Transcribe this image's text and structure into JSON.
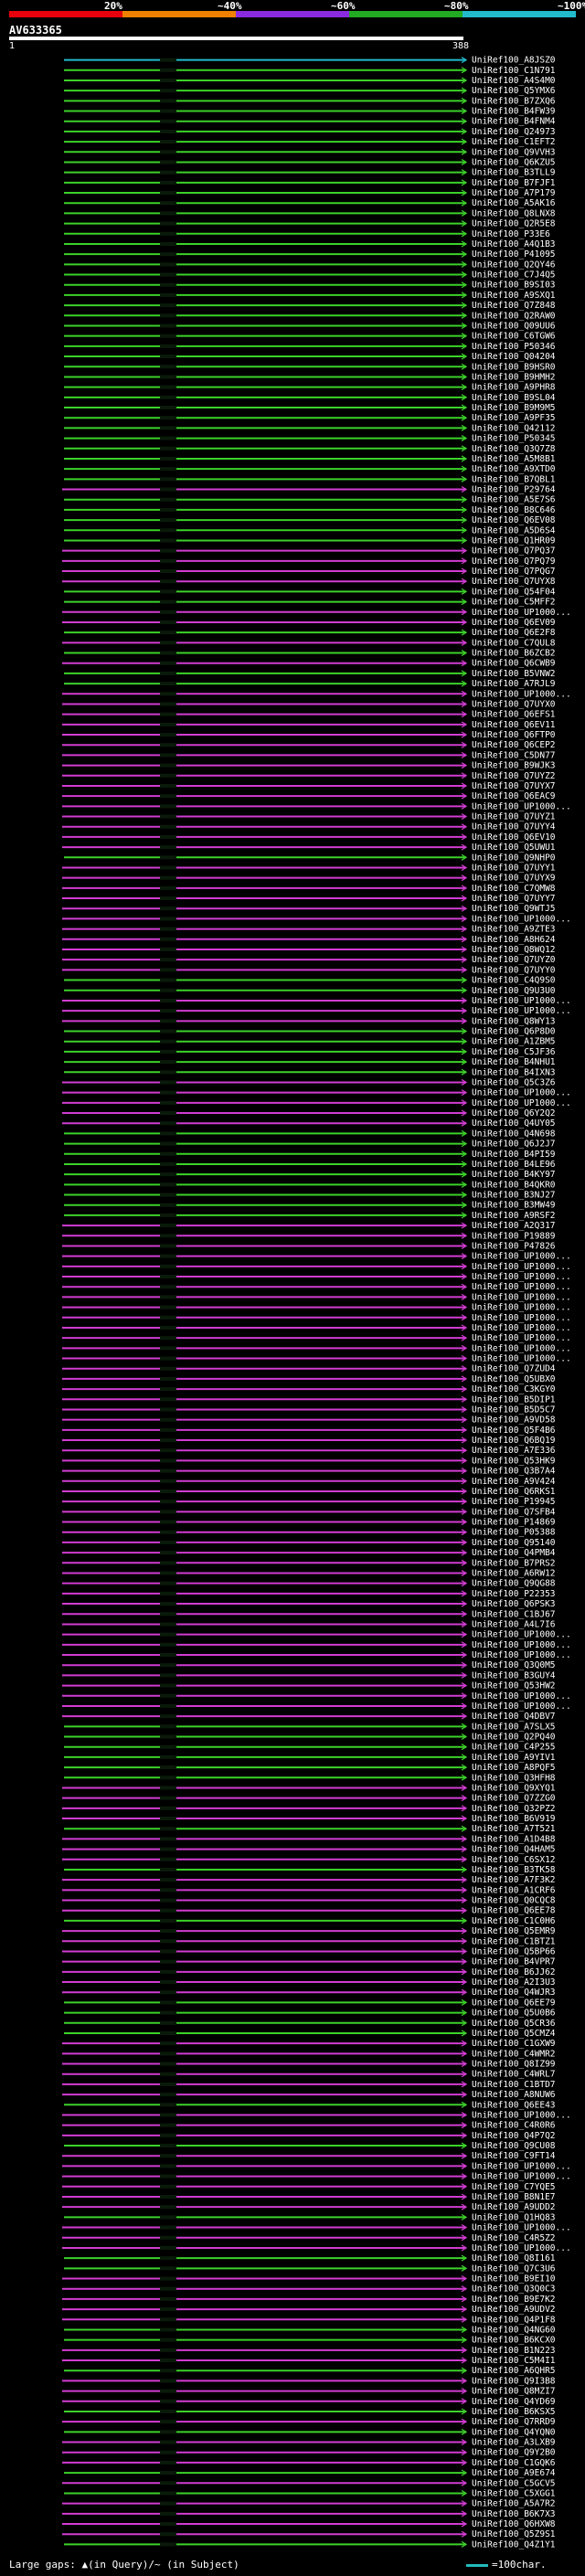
{
  "legend": {
    "segments": [
      {
        "label": "20%",
        "color": "#e8000d"
      },
      {
        "label": "~40%",
        "color": "#f08000"
      },
      {
        "label": "~60%",
        "color": "#8a2be2"
      },
      {
        "label": "~80%",
        "color": "#22aa22"
      },
      {
        "label": "~100%",
        "color": "#22bbcc"
      }
    ]
  },
  "query": {
    "name": "AV633365",
    "start_label": "1",
    "end_label": "388"
  },
  "colors": {
    "green": "#3cd22a",
    "magenta": "#d23cd2",
    "cyan": "#22bbcc",
    "black_bar": "#0a1a0a"
  },
  "hits": [
    {
      "label": "UniRef100_A8JSZ0",
      "color": "cyan"
    },
    {
      "label": "UniRef100_C1N791",
      "color": "green"
    },
    {
      "label": "UniRef100_A4S4M0",
      "color": "green"
    },
    {
      "label": "UniRef100_Q5YMX6",
      "color": "green"
    },
    {
      "label": "UniRef100_B7ZXQ6",
      "color": "green"
    },
    {
      "label": "UniRef100_B4FW39",
      "color": "green"
    },
    {
      "label": "UniRef100_B4FNM4",
      "color": "green"
    },
    {
      "label": "UniRef100_Q24973",
      "color": "green"
    },
    {
      "label": "UniRef100_C1EFT2",
      "color": "green"
    },
    {
      "label": "UniRef100_Q9VVH3",
      "color": "green"
    },
    {
      "label": "UniRef100_Q6KZU5",
      "color": "green"
    },
    {
      "label": "UniRef100_B3TLL9",
      "color": "green"
    },
    {
      "label": "UniRef100_B7FJF1",
      "color": "green"
    },
    {
      "label": "UniRef100_A7P179",
      "color": "green"
    },
    {
      "label": "UniRef100_A5AK16",
      "color": "green"
    },
    {
      "label": "UniRef100_Q8LNX8",
      "color": "green"
    },
    {
      "label": "UniRef100_Q2R5E8",
      "color": "green"
    },
    {
      "label": "UniRef100_P33E6",
      "color": "green"
    },
    {
      "label": "UniRef100_A4Q1B3",
      "color": "green"
    },
    {
      "label": "UniRef100_P41095",
      "color": "green"
    },
    {
      "label": "UniRef100_Q2QY46",
      "color": "green"
    },
    {
      "label": "UniRef100_C7J4Q5",
      "color": "green"
    },
    {
      "label": "UniRef100_B9SI03",
      "color": "green"
    },
    {
      "label": "UniRef100_A9SXQ1",
      "color": "green"
    },
    {
      "label": "UniRef100_Q7Z848",
      "color": "green"
    },
    {
      "label": "UniRef100_Q2RAW0",
      "color": "green"
    },
    {
      "label": "UniRef100_Q09UU6",
      "color": "green"
    },
    {
      "label": "UniRef100_C6TGW6",
      "color": "green"
    },
    {
      "label": "UniRef100_P50346",
      "color": "green"
    },
    {
      "label": "UniRef100_Q04204",
      "color": "green"
    },
    {
      "label": "UniRef100_B9HSR0",
      "color": "green"
    },
    {
      "label": "UniRef100_B9HMH2",
      "color": "green"
    },
    {
      "label": "UniRef100_A9PHR8",
      "color": "green"
    },
    {
      "label": "UniRef100_B9SL04",
      "color": "green"
    },
    {
      "label": "UniRef100_B9M9M5",
      "color": "green"
    },
    {
      "label": "UniRef100_A9PF35",
      "color": "green"
    },
    {
      "label": "UniRef100_Q42112",
      "color": "green"
    },
    {
      "label": "UniRef100_P50345",
      "color": "green"
    },
    {
      "label": "UniRef100_Q3Q7Z8",
      "color": "green"
    },
    {
      "label": "UniRef100_A5M8B1",
      "color": "green"
    },
    {
      "label": "UniRef100_A9XTD0",
      "color": "green"
    },
    {
      "label": "UniRef100_B7QBL1",
      "color": "green"
    },
    {
      "label": "UniRef100_P29764",
      "color": "magenta"
    },
    {
      "label": "UniRef100_A5E7S6",
      "color": "green"
    },
    {
      "label": "UniRef100_B8C646",
      "color": "green"
    },
    {
      "label": "UniRef100_Q6EV08",
      "color": "green"
    },
    {
      "label": "UniRef100_A5D6S4",
      "color": "green"
    },
    {
      "label": "UniRef100_Q1HR09",
      "color": "green"
    },
    {
      "label": "UniRef100_Q7PQ37",
      "color": "magenta"
    },
    {
      "label": "UniRef100_Q7PQ79",
      "color": "magenta"
    },
    {
      "label": "UniRef100_Q7PQG7",
      "color": "magenta"
    },
    {
      "label": "UniRef100_Q7UYX8",
      "color": "magenta"
    },
    {
      "label": "UniRef100_Q54F04",
      "color": "green"
    },
    {
      "label": "UniRef100_C5MFF2",
      "color": "green"
    },
    {
      "label": "UniRef100_UP1000...",
      "color": "magenta"
    },
    {
      "label": "UniRef100_Q6EV09",
      "color": "magenta"
    },
    {
      "label": "UniRef100_Q6E2F8",
      "color": "green"
    },
    {
      "label": "UniRef100_C7QUL8",
      "color": "magenta"
    },
    {
      "label": "UniRef100_B6ZCB2",
      "color": "green"
    },
    {
      "label": "UniRef100_Q6CWB9",
      "color": "magenta"
    },
    {
      "label": "UniRef100_B5VNW2",
      "color": "green"
    },
    {
      "label": "UniRef100_A7RJL9",
      "color": "green"
    },
    {
      "label": "UniRef100_UP1000...",
      "color": "magenta"
    },
    {
      "label": "UniRef100_Q7UYX0",
      "color": "magenta"
    },
    {
      "label": "UniRef100_Q6EFS1",
      "color": "magenta"
    },
    {
      "label": "UniRef100_Q6EV11",
      "color": "magenta"
    },
    {
      "label": "UniRef100_Q6FTP0",
      "color": "magenta"
    },
    {
      "label": "UniRef100_Q6CEP2",
      "color": "magenta"
    },
    {
      "label": "UniRef100_C5DN77",
      "color": "magenta"
    },
    {
      "label": "UniRef100_B9WJK3",
      "color": "magenta"
    },
    {
      "label": "UniRef100_Q7UYZ2",
      "color": "magenta"
    },
    {
      "label": "UniRef100_Q7UYX7",
      "color": "magenta"
    },
    {
      "label": "UniRef100_Q6EAC9",
      "color": "magenta"
    },
    {
      "label": "UniRef100_UP1000...",
      "color": "magenta"
    },
    {
      "label": "UniRef100_Q7UYZ1",
      "color": "magenta"
    },
    {
      "label": "UniRef100_Q7UYY4",
      "color": "magenta"
    },
    {
      "label": "UniRef100_Q6EV10",
      "color": "magenta"
    },
    {
      "label": "UniRef100_Q5UWU1",
      "color": "magenta"
    },
    {
      "label": "UniRef100_Q9NHP0",
      "color": "green"
    },
    {
      "label": "UniRef100_Q7UYY1",
      "color": "magenta"
    },
    {
      "label": "UniRef100_Q7UYX9",
      "color": "magenta"
    },
    {
      "label": "UniRef100_C7QMW8",
      "color": "magenta"
    },
    {
      "label": "UniRef100_Q7UYY7",
      "color": "magenta"
    },
    {
      "label": "UniRef100_Q9WTJ5",
      "color": "magenta"
    },
    {
      "label": "UniRef100_UP1000...",
      "color": "magenta"
    },
    {
      "label": "UniRef100_A9ZTE3",
      "color": "magenta"
    },
    {
      "label": "UniRef100_A8H624",
      "color": "magenta"
    },
    {
      "label": "UniRef100_Q8WQ12",
      "color": "magenta"
    },
    {
      "label": "UniRef100_Q7UYZ0",
      "color": "magenta"
    },
    {
      "label": "UniRef100_Q7UYY0",
      "color": "magenta"
    },
    {
      "label": "UniRef100_C4Q9S0",
      "color": "green"
    },
    {
      "label": "UniRef100_Q9U3U0",
      "color": "green"
    },
    {
      "label": "UniRef100_UP1000...",
      "color": "magenta"
    },
    {
      "label": "UniRef100_UP1000...",
      "color": "magenta"
    },
    {
      "label": "UniRef100_Q8WY13",
      "color": "magenta"
    },
    {
      "label": "UniRef100_Q6P8D0",
      "color": "green"
    },
    {
      "label": "UniRef100_A1ZBM5",
      "color": "green"
    },
    {
      "label": "UniRef100_C5JF36",
      "color": "green"
    },
    {
      "label": "UniRef100_B4NHU1",
      "color": "green"
    },
    {
      "label": "UniRef100_B4IXN3",
      "color": "green"
    },
    {
      "label": "UniRef100_Q5C3Z6",
      "color": "magenta"
    },
    {
      "label": "UniRef100_UP1000...",
      "color": "magenta"
    },
    {
      "label": "UniRef100_UP1000...",
      "color": "magenta"
    },
    {
      "label": "UniRef100_Q6Y2Q2",
      "color": "magenta"
    },
    {
      "label": "UniRef100_Q4UY05",
      "color": "magenta"
    },
    {
      "label": "UniRef100_Q4N698",
      "color": "green"
    },
    {
      "label": "UniRef100_Q6J2J7",
      "color": "green"
    },
    {
      "label": "UniRef100_B4PI59",
      "color": "green"
    },
    {
      "label": "UniRef100_B4LE96",
      "color": "green"
    },
    {
      "label": "UniRef100_B4KY97",
      "color": "green"
    },
    {
      "label": "UniRef100_B4QKR0",
      "color": "green"
    },
    {
      "label": "UniRef100_B3NJ27",
      "color": "green"
    },
    {
      "label": "UniRef100_B3MW49",
      "color": "green"
    },
    {
      "label": "UniRef100_A9RSF2",
      "color": "green"
    },
    {
      "label": "UniRef100_A2Q317",
      "color": "magenta"
    },
    {
      "label": "UniRef100_P19889",
      "color": "magenta"
    },
    {
      "label": "UniRef100_P47826",
      "color": "magenta"
    },
    {
      "label": "UniRef100_UP1000...",
      "color": "magenta"
    },
    {
      "label": "UniRef100_UP1000...",
      "color": "magenta"
    },
    {
      "label": "UniRef100_UP1000...",
      "color": "magenta"
    },
    {
      "label": "UniRef100_UP1000...",
      "color": "magenta"
    },
    {
      "label": "UniRef100_UP1000...",
      "color": "magenta"
    },
    {
      "label": "UniRef100_UP1000...",
      "color": "magenta"
    },
    {
      "label": "UniRef100_UP1000...",
      "color": "magenta"
    },
    {
      "label": "UniRef100_UP1000...",
      "color": "magenta"
    },
    {
      "label": "UniRef100_UP1000...",
      "color": "magenta"
    },
    {
      "label": "UniRef100_UP1000...",
      "color": "magenta"
    },
    {
      "label": "UniRef100_UP1000...",
      "color": "magenta"
    },
    {
      "label": "UniRef100_Q7ZUD4",
      "color": "magenta"
    },
    {
      "label": "UniRef100_Q5UBX0",
      "color": "magenta"
    },
    {
      "label": "UniRef100_C3KGY0",
      "color": "magenta"
    },
    {
      "label": "UniRef100_B5DIP1",
      "color": "magenta"
    },
    {
      "label": "UniRef100_B5D5C7",
      "color": "magenta"
    },
    {
      "label": "UniRef100_A9VD58",
      "color": "magenta"
    },
    {
      "label": "UniRef100_Q5F4B6",
      "color": "magenta"
    },
    {
      "label": "UniRef100_Q6BQ19",
      "color": "magenta"
    },
    {
      "label": "UniRef100_A7E336",
      "color": "magenta"
    },
    {
      "label": "UniRef100_Q53HK9",
      "color": "magenta"
    },
    {
      "label": "UniRef100_Q3B7A4",
      "color": "magenta"
    },
    {
      "label": "UniRef100_A9V424",
      "color": "magenta"
    },
    {
      "label": "UniRef100_Q6RKS1",
      "color": "magenta"
    },
    {
      "label": "UniRef100_P19945",
      "color": "magenta"
    },
    {
      "label": "UniRef100_Q7SFB4",
      "color": "magenta"
    },
    {
      "label": "UniRef100_P14869",
      "color": "magenta"
    },
    {
      "label": "UniRef100_P05388",
      "color": "magenta"
    },
    {
      "label": "UniRef100_Q95140",
      "color": "magenta"
    },
    {
      "label": "UniRef100_Q4PMB4",
      "color": "magenta"
    },
    {
      "label": "UniRef100_B7PRS2",
      "color": "magenta"
    },
    {
      "label": "UniRef100_A6RW12",
      "color": "magenta"
    },
    {
      "label": "UniRef100_Q9QG88",
      "color": "magenta"
    },
    {
      "label": "UniRef100_P22353",
      "color": "magenta"
    },
    {
      "label": "UniRef100_Q6PSK3",
      "color": "magenta"
    },
    {
      "label": "UniRef100_C1BJ67",
      "color": "magenta"
    },
    {
      "label": "UniRef100_A4L7I6",
      "color": "magenta"
    },
    {
      "label": "UniRef100_UP1000...",
      "color": "magenta"
    },
    {
      "label": "UniRef100_UP1000...",
      "color": "magenta"
    },
    {
      "label": "UniRef100_UP1000...",
      "color": "magenta"
    },
    {
      "label": "UniRef100_Q3Q0M5",
      "color": "magenta"
    },
    {
      "label": "UniRef100_B3GUY4",
      "color": "magenta"
    },
    {
      "label": "UniRef100_Q53HW2",
      "color": "magenta"
    },
    {
      "label": "UniRef100_UP1000...",
      "color": "magenta"
    },
    {
      "label": "UniRef100_UP1000...",
      "color": "magenta"
    },
    {
      "label": "UniRef100_Q4DBV7",
      "color": "magenta"
    },
    {
      "label": "UniRef100_A7SLX5",
      "color": "green"
    },
    {
      "label": "UniRef100_Q2PQ40",
      "color": "green"
    },
    {
      "label": "UniRef100_C4P255",
      "color": "green"
    },
    {
      "label": "UniRef100_A9YIV1",
      "color": "green"
    },
    {
      "label": "UniRef100_A8PQF5",
      "color": "green"
    },
    {
      "label": "UniRef100_Q3HFH8",
      "color": "green"
    },
    {
      "label": "UniRef100_Q9XYQ1",
      "color": "magenta"
    },
    {
      "label": "UniRef100_Q7ZZG0",
      "color": "magenta"
    },
    {
      "label": "UniRef100_Q32PZ2",
      "color": "magenta"
    },
    {
      "label": "UniRef100_B6V919",
      "color": "magenta"
    },
    {
      "label": "UniRef100_A7T521",
      "color": "green"
    },
    {
      "label": "UniRef100_A1D4B8",
      "color": "magenta"
    },
    {
      "label": "UniRef100_Q4HAM5",
      "color": "magenta"
    },
    {
      "label": "UniRef100_C6SX12",
      "color": "magenta"
    },
    {
      "label": "UniRef100_B3TK58",
      "color": "green"
    },
    {
      "label": "UniRef100_A7F3K2",
      "color": "magenta"
    },
    {
      "label": "UniRef100_A1CRF6",
      "color": "magenta"
    },
    {
      "label": "UniRef100_Q0CQC8",
      "color": "magenta"
    },
    {
      "label": "UniRef100_Q6EE78",
      "color": "magenta"
    },
    {
      "label": "UniRef100_C1C0H6",
      "color": "green"
    },
    {
      "label": "UniRef100_Q5EMR9",
      "color": "magenta"
    },
    {
      "label": "UniRef100_C1BTZ1",
      "color": "magenta"
    },
    {
      "label": "UniRef100_Q5BP66",
      "color": "magenta"
    },
    {
      "label": "UniRef100_B4VPR7",
      "color": "magenta"
    },
    {
      "label": "UniRef100_B6JJ62",
      "color": "magenta"
    },
    {
      "label": "UniRef100_A2I3U3",
      "color": "magenta"
    },
    {
      "label": "UniRef100_Q4WJR3",
      "color": "magenta"
    },
    {
      "label": "UniRef100_Q6EE79",
      "color": "green"
    },
    {
      "label": "UniRef100_Q5U0B6",
      "color": "green"
    },
    {
      "label": "UniRef100_Q5CR36",
      "color": "green"
    },
    {
      "label": "UniRef100_Q5CMZ4",
      "color": "green"
    },
    {
      "label": "UniRef100_C1GXW9",
      "color": "magenta"
    },
    {
      "label": "UniRef100_C4WMR2",
      "color": "magenta"
    },
    {
      "label": "UniRef100_Q8IZ99",
      "color": "magenta"
    },
    {
      "label": "UniRef100_C4WRL7",
      "color": "magenta"
    },
    {
      "label": "UniRef100_C1BTD7",
      "color": "magenta"
    },
    {
      "label": "UniRef100_A8NUW6",
      "color": "magenta"
    },
    {
      "label": "UniRef100_Q6EE43",
      "color": "green"
    },
    {
      "label": "UniRef100_UP1000...",
      "color": "magenta"
    },
    {
      "label": "UniRef100_C4R0R6",
      "color": "magenta"
    },
    {
      "label": "UniRef100_Q4P7Q2",
      "color": "magenta"
    },
    {
      "label": "UniRef100_Q9CU08",
      "color": "green"
    },
    {
      "label": "UniRef100_C9FT14",
      "color": "magenta"
    },
    {
      "label": "UniRef100_UP1000...",
      "color": "magenta"
    },
    {
      "label": "UniRef100_UP1000...",
      "color": "magenta"
    },
    {
      "label": "UniRef100_C7YQE5",
      "color": "magenta"
    },
    {
      "label": "UniRef100_B8N1E7",
      "color": "magenta"
    },
    {
      "label": "UniRef100_A9UDD2",
      "color": "magenta"
    },
    {
      "label": "UniRef100_Q1HQ83",
      "color": "green"
    },
    {
      "label": "UniRef100_UP1000...",
      "color": "magenta"
    },
    {
      "label": "UniRef100_C4R5Z2",
      "color": "magenta"
    },
    {
      "label": "UniRef100_UP1000...",
      "color": "magenta"
    },
    {
      "label": "UniRef100_Q8I161",
      "color": "green"
    },
    {
      "label": "UniRef100_Q7C3U6",
      "color": "green"
    },
    {
      "label": "UniRef100_B9EI10",
      "color": "magenta"
    },
    {
      "label": "UniRef100_Q3Q0C3",
      "color": "magenta"
    },
    {
      "label": "UniRef100_B9E7K2",
      "color": "magenta"
    },
    {
      "label": "UniRef100_A9UDV2",
      "color": "magenta"
    },
    {
      "label": "UniRef100_Q4P1F8",
      "color": "magenta"
    },
    {
      "label": "UniRef100_Q4NG60",
      "color": "green"
    },
    {
      "label": "UniRef100_B6KCX0",
      "color": "green"
    },
    {
      "label": "UniRef100_B1N223",
      "color": "magenta"
    },
    {
      "label": "UniRef100_C5M4I1",
      "color": "magenta"
    },
    {
      "label": "UniRef100_A6QHR5",
      "color": "green"
    },
    {
      "label": "UniRef100_Q9I3B8",
      "color": "magenta"
    },
    {
      "label": "UniRef100_Q8MZI7",
      "color": "magenta"
    },
    {
      "label": "UniRef100_Q4YD69",
      "color": "magenta"
    },
    {
      "label": "UniRef100_B6KSX5",
      "color": "green"
    },
    {
      "label": "UniRef100_Q7RRD9",
      "color": "magenta"
    },
    {
      "label": "UniRef100_Q4YQN0",
      "color": "green"
    },
    {
      "label": "UniRef100_A3LXB9",
      "color": "magenta"
    },
    {
      "label": "UniRef100_Q9Y2B0",
      "color": "magenta"
    },
    {
      "label": "UniRef100_C1GQK6",
      "color": "magenta"
    },
    {
      "label": "UniRef100_A9E674",
      "color": "green"
    },
    {
      "label": "UniRef100_C5GCV5",
      "color": "magenta"
    },
    {
      "label": "UniRef100_C5XGG1",
      "color": "green"
    },
    {
      "label": "UniRef100_A5A7R2",
      "color": "magenta"
    },
    {
      "label": "UniRef100_B6K7X3",
      "color": "magenta"
    },
    {
      "label": "UniRef100_Q6HXW8",
      "color": "magenta"
    },
    {
      "label": "UniRef100_Q5Z9S1",
      "color": "magenta"
    },
    {
      "label": "UniRef100_Q4Z1Y1",
      "color": "green"
    }
  ],
  "footer": {
    "gaps_label": "Large gaps:",
    "gaps_query": "(in Query)",
    "gaps_sep": "/~",
    "gaps_subject": "(in Subject)",
    "scale_label": "=100char."
  }
}
